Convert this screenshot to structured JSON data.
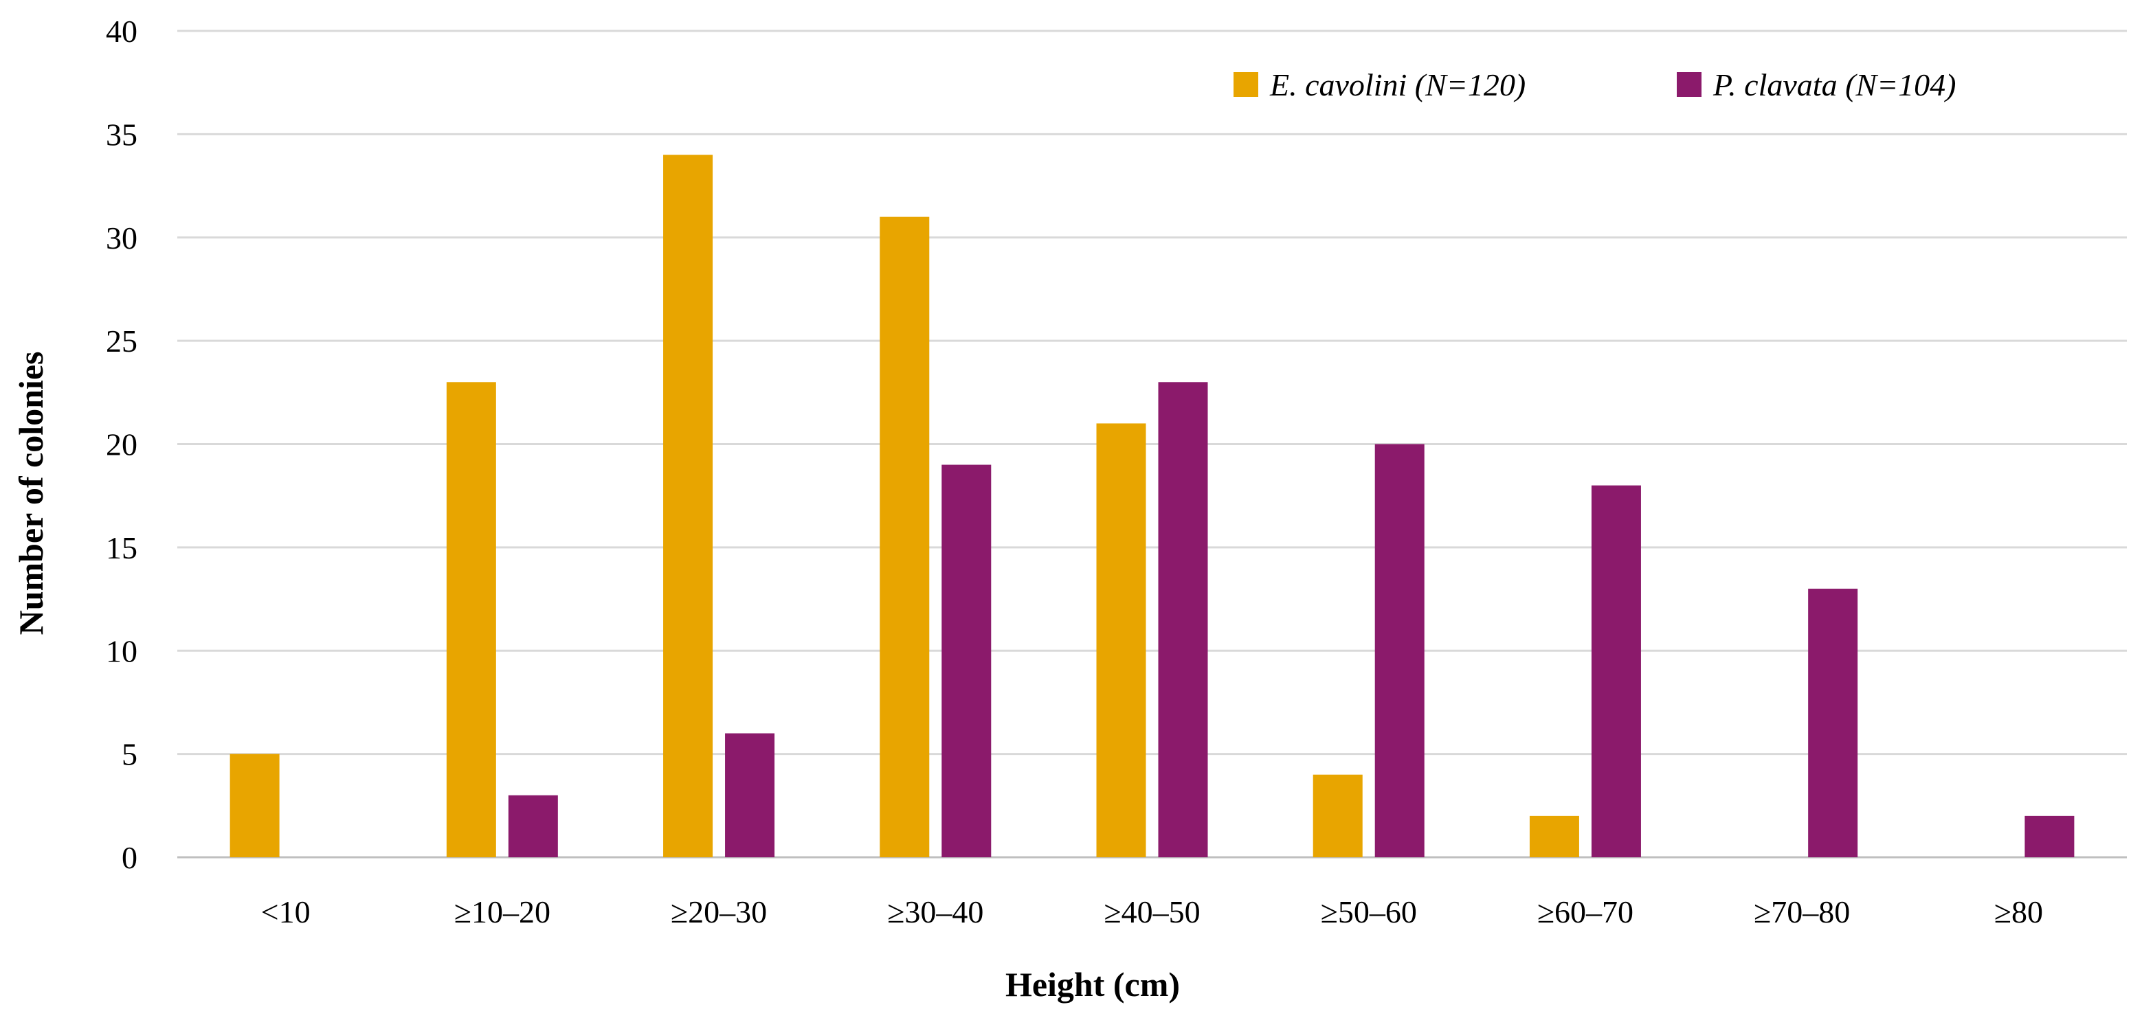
{
  "chart_data": {
    "type": "bar",
    "title": "",
    "xlabel": "Height (cm)",
    "ylabel": "Number of colonies",
    "ylim": [
      0,
      40
    ],
    "ytick_step": 5,
    "grid": true,
    "legend_position": "top-right",
    "categories": [
      "<10",
      "≥10–20",
      "≥20–30",
      "≥30–40",
      "≥40–50",
      "≥50–60",
      "≥60–70",
      "≥70–80",
      "≥80"
    ],
    "series": [
      {
        "name": "E. cavolini (N=120)",
        "color": "#E8A500",
        "values": [
          5,
          23,
          34,
          31,
          21,
          4,
          2,
          0,
          0
        ]
      },
      {
        "name": "P. clavata (N=104)",
        "color": "#8B1A6B",
        "values": [
          0,
          3,
          6,
          19,
          23,
          20,
          18,
          13,
          2
        ]
      }
    ]
  }
}
